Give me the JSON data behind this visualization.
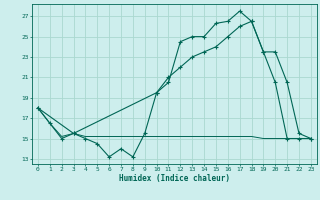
{
  "xlabel": "Humidex (Indice chaleur)",
  "bg_color": "#cdeeed",
  "grid_color": "#aad8d0",
  "line_color": "#006655",
  "xlim": [
    -0.5,
    23.5
  ],
  "ylim": [
    12.5,
    28.2
  ],
  "yticks": [
    13,
    15,
    17,
    19,
    21,
    23,
    25,
    27
  ],
  "xticks": [
    0,
    1,
    2,
    3,
    4,
    5,
    6,
    7,
    8,
    9,
    10,
    11,
    12,
    13,
    14,
    15,
    16,
    17,
    18,
    19,
    20,
    21,
    22,
    23
  ],
  "line1_x": [
    0,
    1,
    2,
    3,
    4,
    5,
    6,
    7,
    8,
    9,
    10,
    11,
    12,
    13,
    14,
    15,
    16,
    17,
    18,
    19,
    20,
    21,
    22,
    23
  ],
  "line1_y": [
    18.0,
    16.5,
    15.0,
    15.5,
    15.0,
    14.5,
    13.2,
    14.0,
    13.2,
    15.5,
    19.5,
    20.5,
    24.5,
    25.0,
    25.0,
    26.3,
    26.5,
    27.5,
    26.5,
    23.5,
    20.5,
    15.0,
    15.0,
    15.0
  ],
  "line2_x": [
    0,
    1,
    2,
    3,
    4,
    5,
    6,
    7,
    8,
    9,
    10,
    11,
    12,
    13,
    14,
    15,
    16,
    17,
    18,
    19,
    20,
    21,
    22,
    23
  ],
  "line2_y": [
    18.0,
    16.5,
    15.2,
    15.5,
    15.2,
    15.2,
    15.2,
    15.2,
    15.2,
    15.2,
    15.2,
    15.2,
    15.2,
    15.2,
    15.2,
    15.2,
    15.2,
    15.2,
    15.2,
    15.0,
    15.0,
    15.0,
    15.0,
    15.0
  ],
  "line3_x": [
    0,
    3,
    10,
    11,
    12,
    13,
    14,
    15,
    16,
    17,
    18,
    19,
    20,
    21,
    22,
    23
  ],
  "line3_y": [
    18.0,
    15.5,
    19.5,
    21.0,
    22.0,
    23.0,
    23.5,
    24.0,
    25.0,
    26.0,
    26.5,
    23.5,
    23.5,
    20.5,
    15.5,
    15.0
  ]
}
